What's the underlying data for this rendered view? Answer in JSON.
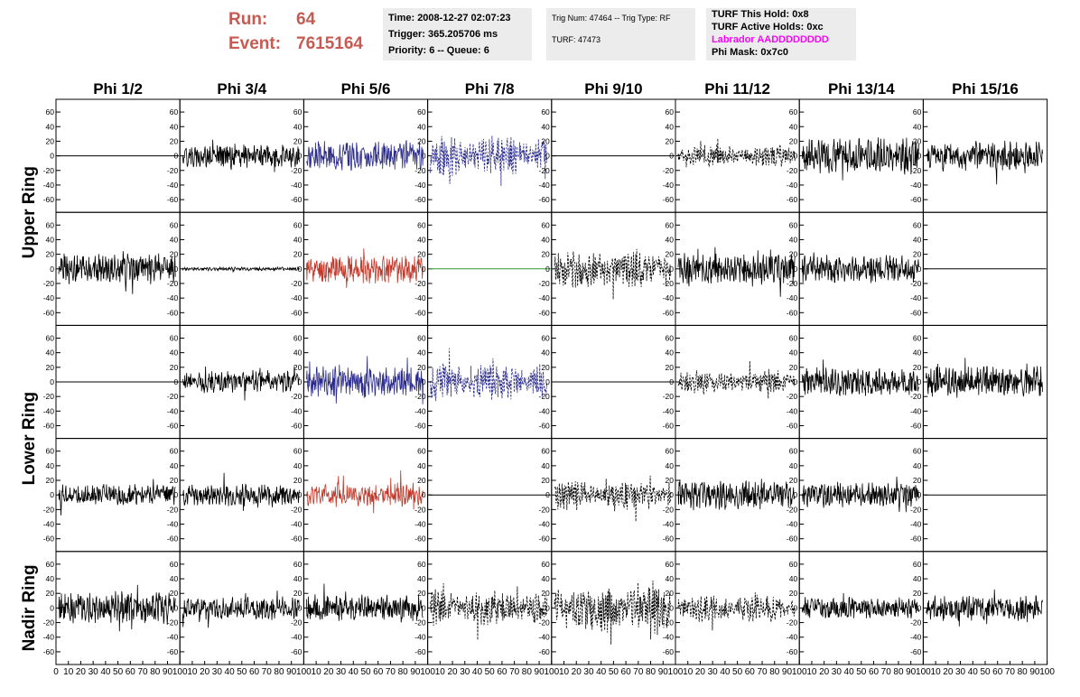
{
  "header": {
    "run_label": "Run:",
    "run_value": "64",
    "event_label": "Event:",
    "event_value": "7615164"
  },
  "time_box": {
    "time": "Time: 2008-12-27 02:07:23",
    "trigger": "Trigger: 365.205706 ms",
    "priority": "Priority: 6 -- Queue: 6"
  },
  "trig_box": {
    "trig": "Trig Num: 47464 -- Trig Type: RF",
    "turf": "TURF: 47473"
  },
  "turf_box": {
    "this_hold": "TURF This Hold: 0x8",
    "active_holds": "TURF Active Holds: 0xc",
    "labrador": "Labrador AADDDDDDDD",
    "labrador_color": "#ff00ff",
    "phi_mask": "Phi Mask: 0x7c0"
  },
  "chart_data": {
    "type": "line",
    "title": "",
    "columns": [
      "Phi 1/2",
      "Phi 3/4",
      "Phi 5/6",
      "Phi 7/8",
      "Phi 9/10",
      "Phi 11/12",
      "Phi 13/14",
      "Phi 15/16"
    ],
    "rows": [
      "Upper Ring",
      "Upper Ring",
      "Lower Ring",
      "Lower Ring",
      "Nadir Ring"
    ],
    "row_labels": [
      "Upper Ring",
      "Lower Ring",
      "Nadir Ring"
    ],
    "ylim": [
      -70,
      70
    ],
    "y_ticks": [
      -60,
      -40,
      -20,
      0,
      20,
      40,
      60
    ],
    "xlim": [
      0,
      100
    ],
    "x_tick_labels": [
      "0",
      "10",
      "20",
      "30",
      "40",
      "50",
      "60",
      "70",
      "80",
      "90",
      "100"
    ],
    "colors": {
      "black": "#000000",
      "blue": "#2b2b8c",
      "red": "#c0392b",
      "green": "#2a9d2a"
    },
    "panels": [
      [
        {
          "style": "flat",
          "color": "black",
          "amp": 0,
          "seed": 1
        },
        {
          "style": "solid",
          "color": "black",
          "amp": 13,
          "seed": 2
        },
        {
          "style": "solid",
          "color": "blue",
          "amp": 17,
          "seed": 3
        },
        {
          "style": "dashed",
          "color": "blue",
          "amp": 18,
          "seed": 4
        },
        {
          "style": "flat",
          "color": "black",
          "amp": 0,
          "seed": 5
        },
        {
          "style": "dashed",
          "color": "black",
          "amp": 10,
          "seed": 6
        },
        {
          "style": "solid",
          "color": "black",
          "amp": 20,
          "seed": 7
        },
        {
          "style": "solid",
          "color": "black",
          "amp": 17,
          "seed": 8
        }
      ],
      [
        {
          "style": "solid",
          "color": "black",
          "amp": 17,
          "seed": 9
        },
        {
          "style": "solid",
          "color": "black",
          "amp": 2,
          "seed": 10
        },
        {
          "style": "solid",
          "color": "red",
          "amp": 16,
          "seed": 11
        },
        {
          "style": "flat",
          "color": "green",
          "amp": 0,
          "seed": 12
        },
        {
          "style": "dashed",
          "color": "black",
          "amp": 17,
          "seed": 13
        },
        {
          "style": "solid",
          "color": "black",
          "amp": 17,
          "seed": 14
        },
        {
          "style": "solid",
          "color": "black",
          "amp": 15,
          "seed": 15
        },
        {
          "style": "flat",
          "color": "black",
          "amp": 0,
          "seed": 16
        }
      ],
      [
        {
          "style": "flat",
          "color": "black",
          "amp": 0,
          "seed": 17
        },
        {
          "style": "solid",
          "color": "black",
          "amp": 12,
          "seed": 18
        },
        {
          "style": "solid",
          "color": "blue",
          "amp": 17,
          "seed": 19
        },
        {
          "style": "dashed",
          "color": "blue",
          "amp": 17,
          "seed": 20
        },
        {
          "style": "flat",
          "color": "black",
          "amp": 0,
          "seed": 21
        },
        {
          "style": "dashed",
          "color": "black",
          "amp": 11,
          "seed": 22
        },
        {
          "style": "solid",
          "color": "black",
          "amp": 17,
          "seed": 23
        },
        {
          "style": "solid",
          "color": "black",
          "amp": 17,
          "seed": 24
        }
      ],
      [
        {
          "style": "solid",
          "color": "black",
          "amp": 12,
          "seed": 25
        },
        {
          "style": "solid",
          "color": "black",
          "amp": 12,
          "seed": 26
        },
        {
          "style": "solid",
          "color": "red",
          "amp": 13,
          "seed": 27
        },
        {
          "style": "flat",
          "color": "black",
          "amp": 0,
          "seed": 28
        },
        {
          "style": "dashed",
          "color": "black",
          "amp": 13,
          "seed": 29
        },
        {
          "style": "solid",
          "color": "black",
          "amp": 17,
          "seed": 30
        },
        {
          "style": "solid",
          "color": "black",
          "amp": 14,
          "seed": 31
        },
        {
          "style": "flat",
          "color": "black",
          "amp": 0,
          "seed": 32
        }
      ],
      [
        {
          "style": "solid",
          "color": "black",
          "amp": 18,
          "seed": 33
        },
        {
          "style": "solid",
          "color": "black",
          "amp": 13,
          "seed": 34
        },
        {
          "style": "solid",
          "color": "black",
          "amp": 15,
          "seed": 35
        },
        {
          "style": "dashed",
          "color": "black",
          "amp": 16,
          "seed": 36
        },
        {
          "style": "dashed",
          "color": "black",
          "amp": 23,
          "seed": 37
        },
        {
          "style": "dashed",
          "color": "black",
          "amp": 12,
          "seed": 38
        },
        {
          "style": "solid",
          "color": "black",
          "amp": 12,
          "seed": 39
        },
        {
          "style": "solid",
          "color": "black",
          "amp": 14,
          "seed": 40
        }
      ]
    ]
  }
}
